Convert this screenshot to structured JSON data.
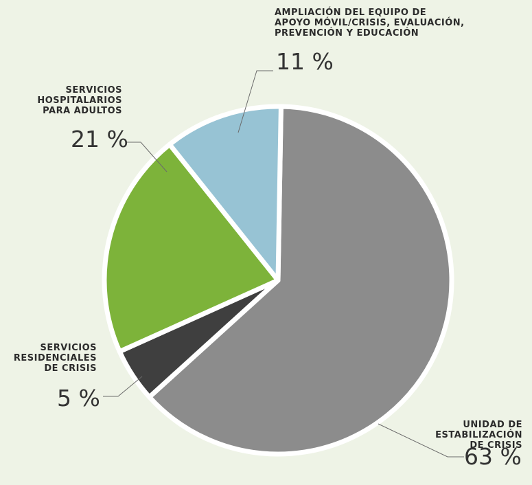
{
  "chart_data": {
    "type": "pie",
    "title": "",
    "slices": [
      {
        "label": "UNIDAD DE\nESTABILIZACIÓN\nDE CRISIS",
        "value": 63,
        "display": "63 %",
        "color": "#8c8c8c"
      },
      {
        "label": "SERVICIOS\nRESIDENCIALES\nDE CRISIS",
        "value": 5,
        "display": "5 %",
        "color": "#3f3f3f"
      },
      {
        "label": "SERVICIOS\nHOSPITALARIOS\nPARA ADULTOS",
        "value": 21,
        "display": "21 %",
        "color": "#7db33a"
      },
      {
        "label": "AMPLIACIÓN DEL EQUIPO DE\nAPOYO MÓVIL/CRISIS, EVALUACIÓN,\nPREVENCIÓN Y EDUCACIÓN",
        "value": 11,
        "display": "11 %",
        "color": "#97c3d4"
      }
    ],
    "start_angle_deg": 1,
    "direction": "clockwise",
    "legend": "none"
  }
}
